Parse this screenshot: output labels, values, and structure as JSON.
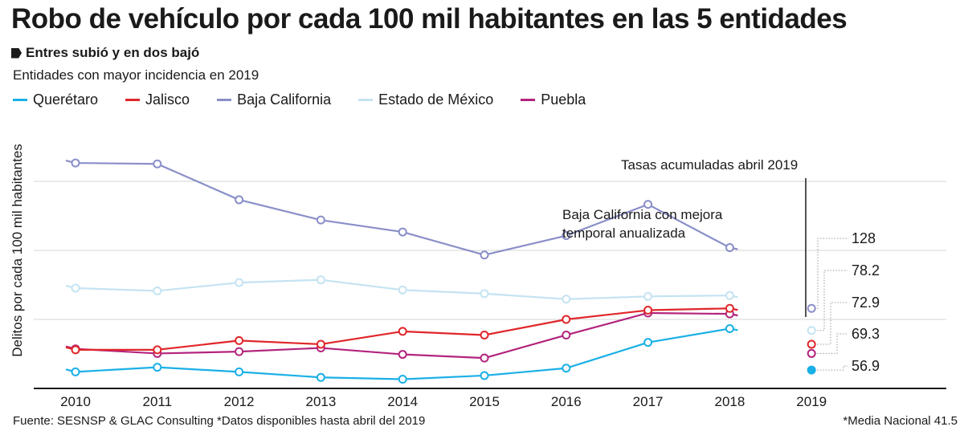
{
  "header": {
    "title": "Robo de vehículo por cada 100 mil habitantes en las 5 entidades",
    "subtitle": "Entres subió y en dos bajó",
    "intro": "Entidades con mayor incidencia en 2019"
  },
  "footer": {
    "source": "Fuente: SESNSP & GLAC Consulting *Datos disponibles hasta abril del 2019",
    "note": "*Media Nacional 41.5"
  },
  "annotations": {
    "accum_label": "Tasas acumuladas abril 2019",
    "bc_note_line1": "Baja California  con mejora",
    "bc_note_line2": "temporal anualizada"
  },
  "chart_data": {
    "type": "line",
    "title": "Robo de vehículo por cada 100 mil habitantes en las 5 entidades",
    "xlabel": "",
    "ylabel": "Delitos por cada 100 mil habitantes",
    "x": [
      "2010",
      "2011",
      "2012",
      "2013",
      "2014",
      "2015",
      "2016",
      "2017",
      "2018"
    ],
    "x_extra": "2019",
    "ylim": [
      0,
      300
    ],
    "grid": true,
    "series": [
      {
        "name": "Querétaro",
        "color": "#1ab0e6",
        "values": [
          18,
          23,
          18,
          12,
          10,
          14,
          22,
          50,
          65
        ],
        "value_2019": 20,
        "label_2019": "56.9"
      },
      {
        "name": "Jalisco",
        "color": "#e0262a",
        "values": [
          42,
          42,
          52,
          48,
          62,
          58,
          75,
          85,
          87
        ],
        "value_2019": 48,
        "label_2019": "72.9"
      },
      {
        "name": "Baja California",
        "color": "#8a8fc8",
        "values": [
          245,
          244,
          205,
          183,
          170,
          145,
          166,
          200,
          153
        ],
        "value_2019": 87,
        "label_2019": "128"
      },
      {
        "name": "Estado de México",
        "color": "#c5e3f2",
        "values": [
          109,
          106,
          115,
          118,
          107,
          103,
          97,
          100,
          101
        ],
        "value_2019": 63,
        "label_2019": "78.2"
      },
      {
        "name": "Puebla",
        "color": "#b3247d",
        "values": [
          43,
          38,
          40,
          44,
          37,
          33,
          58,
          82,
          81
        ],
        "value_2019": 38,
        "label_2019": "69.3"
      }
    ]
  }
}
